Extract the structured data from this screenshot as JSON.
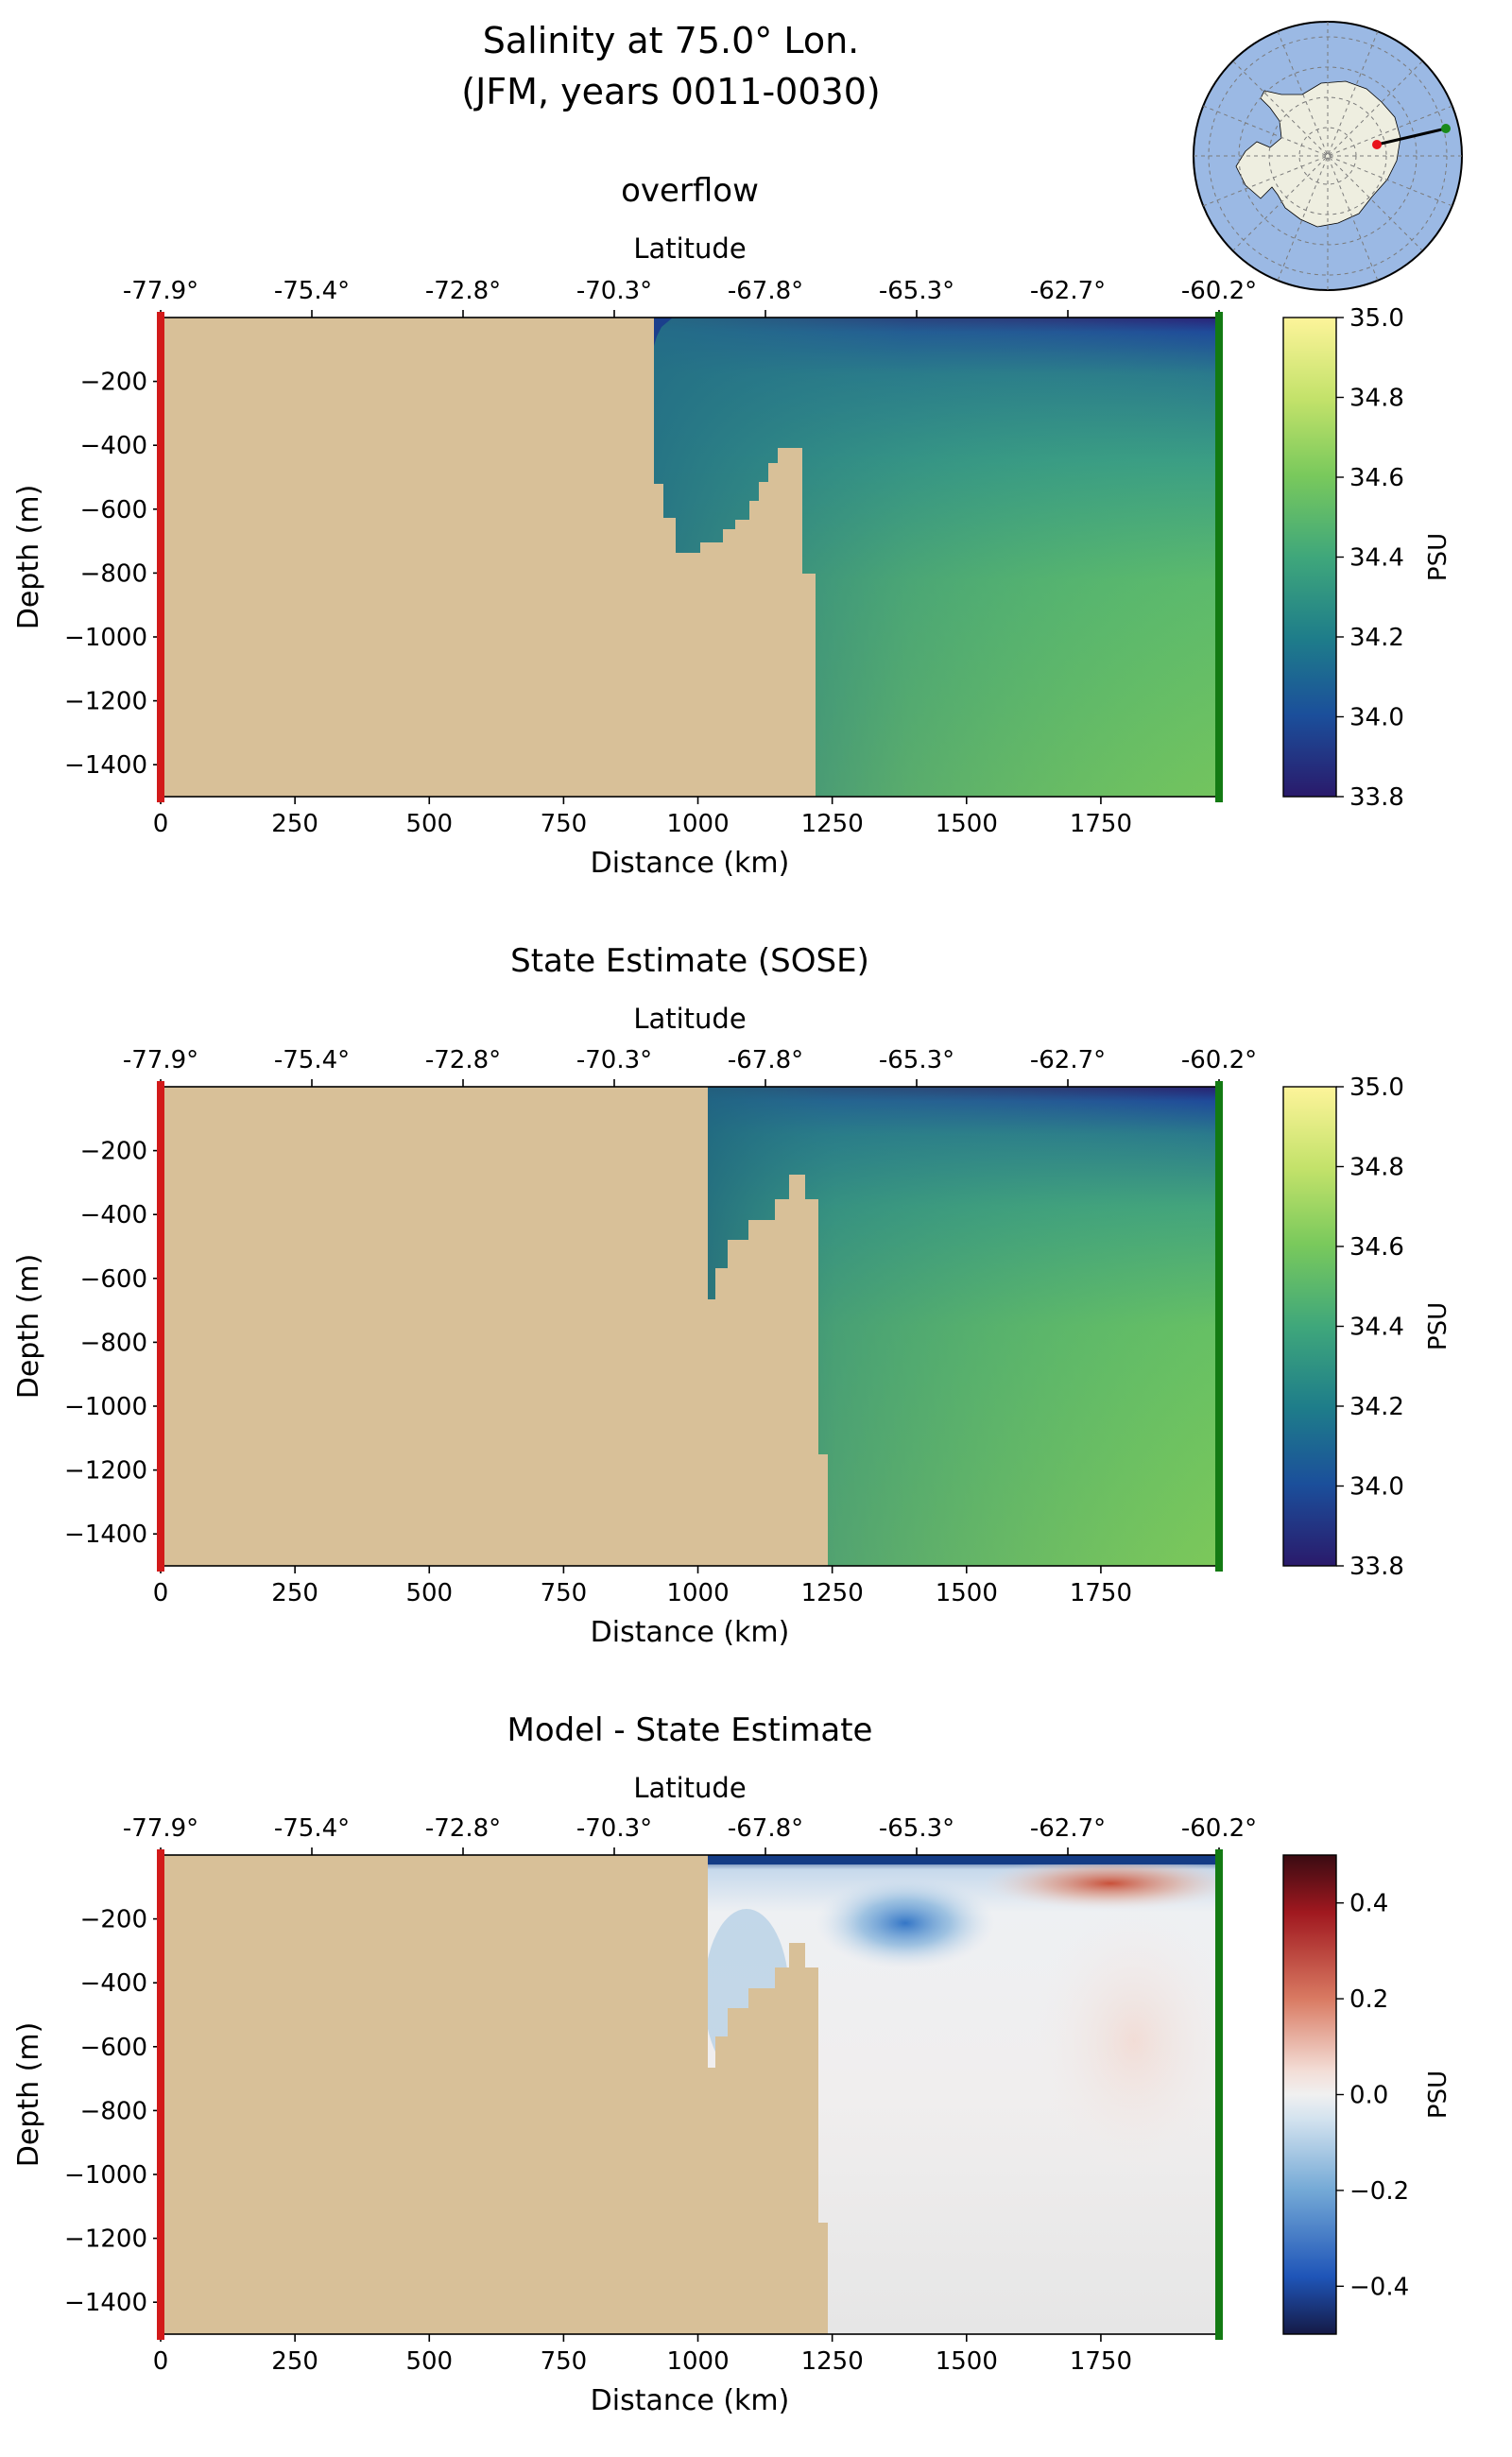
{
  "figure": {
    "title_line1": "Salinity at 75.0° Lon.",
    "title_line2": "(JFM, years 0011-0030)"
  },
  "inset_map": {
    "description": "south polar stereographic locator",
    "ocean_color": "#9bb9e4",
    "land_color": "#eeeee0",
    "start_marker_color": "#e8121b",
    "end_marker_color": "#1a8a1a"
  },
  "colors": {
    "land_mask": "#d8c098",
    "start_edge": "#d21a1a",
    "end_edge": "#137a13"
  },
  "chart_data": [
    {
      "type": "heatmap",
      "title": "overflow",
      "xlabel": "Distance (km)",
      "ylabel": "Depth (m)",
      "top_xlabel": "Latitude",
      "xlim": [
        0,
        1970
      ],
      "ylim": [
        -1500,
        0
      ],
      "x_ticks": [
        "0",
        "250",
        "500",
        "750",
        "1000",
        "1250",
        "1500",
        "1750"
      ],
      "y_ticks": [
        "−200",
        "−400",
        "−600",
        "−800",
        "−1000",
        "−1200",
        "−1400"
      ],
      "lat_ticks": [
        "-77.9°",
        "-75.4°",
        "-72.8°",
        "-70.3°",
        "-67.8°",
        "-65.3°",
        "-62.7°",
        "-60.2°"
      ],
      "colorbar": {
        "label": "PSU",
        "colormap": "haline",
        "range": [
          33.8,
          35.0
        ],
        "ticks": [
          "35.0",
          "34.8",
          "34.6",
          "34.4",
          "34.2",
          "34.0",
          "33.8"
        ]
      },
      "ocean_start_km": 920,
      "shelf_break_km": 1220
    },
    {
      "type": "heatmap",
      "title": "State Estimate (SOSE)",
      "xlabel": "Distance (km)",
      "ylabel": "Depth (m)",
      "top_xlabel": "Latitude",
      "xlim": [
        0,
        1970
      ],
      "ylim": [
        -1500,
        0
      ],
      "x_ticks": [
        "0",
        "250",
        "500",
        "750",
        "1000",
        "1250",
        "1500",
        "1750"
      ],
      "y_ticks": [
        "−200",
        "−400",
        "−600",
        "−800",
        "−1000",
        "−1200",
        "−1400"
      ],
      "lat_ticks": [
        "-77.9°",
        "-75.4°",
        "-72.8°",
        "-70.3°",
        "-67.8°",
        "-65.3°",
        "-62.7°",
        "-60.2°"
      ],
      "colorbar": {
        "label": "PSU",
        "colormap": "haline",
        "range": [
          33.8,
          35.0
        ],
        "ticks": [
          "35.0",
          "34.8",
          "34.6",
          "34.4",
          "34.2",
          "34.0",
          "33.8"
        ]
      },
      "ocean_start_km": 1020,
      "shelf_break_km": 1240
    },
    {
      "type": "heatmap",
      "title": "Model - State Estimate",
      "xlabel": "Distance (km)",
      "ylabel": "Depth (m)",
      "top_xlabel": "Latitude",
      "xlim": [
        0,
        1970
      ],
      "ylim": [
        -1500,
        0
      ],
      "x_ticks": [
        "0",
        "250",
        "500",
        "750",
        "1000",
        "1250",
        "1500",
        "1750"
      ],
      "y_ticks": [
        "−200",
        "−400",
        "−600",
        "−800",
        "−1000",
        "−1200",
        "−1400"
      ],
      "lat_ticks": [
        "-77.9°",
        "-75.4°",
        "-72.8°",
        "-70.3°",
        "-67.8°",
        "-65.3°",
        "-62.7°",
        "-60.2°"
      ],
      "colorbar": {
        "label": "PSU",
        "colormap": "diverging balance",
        "range": [
          -0.5,
          0.5
        ],
        "ticks": [
          "0.4",
          "0.2",
          "0.0",
          "−0.2",
          "−0.4"
        ]
      },
      "features": [
        {
          "kind": "fresh anomaly",
          "center_km": 1400,
          "center_depth_m": -200,
          "value": -0.35
        },
        {
          "kind": "salty anomaly",
          "center_km": 1800,
          "center_depth_m": -60,
          "value": 0.25
        },
        {
          "kind": "surface fresh layer",
          "depth_m": -15,
          "value": -0.45
        }
      ],
      "ocean_start_km": 1020,
      "shelf_break_km": 1240
    }
  ]
}
